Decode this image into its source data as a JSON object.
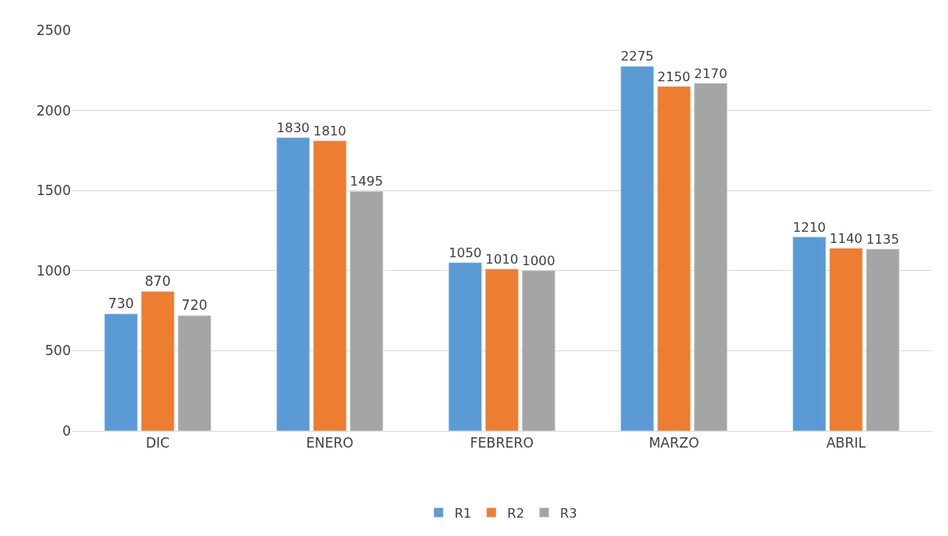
{
  "chart_data": {
    "type": "bar",
    "categories": [
      "DIC",
      "ENERO",
      "FEBRERO",
      "MARZO",
      "ABRIL"
    ],
    "series": [
      {
        "name": "R1",
        "color": "#5b9bd5",
        "values": [
          730,
          1830,
          1050,
          2275,
          1210
        ]
      },
      {
        "name": "R2",
        "color": "#ed7d31",
        "values": [
          870,
          1810,
          1010,
          2150,
          1140
        ]
      },
      {
        "name": "R3",
        "color": "#a5a5a5",
        "values": [
          720,
          1495,
          1000,
          2170,
          1135
        ]
      }
    ],
    "ylim": [
      0,
      2500
    ],
    "yticks": [
      0,
      500,
      1000,
      1500,
      2000,
      2500
    ],
    "grid": "y",
    "legend": "bottom",
    "data_labels": true
  }
}
